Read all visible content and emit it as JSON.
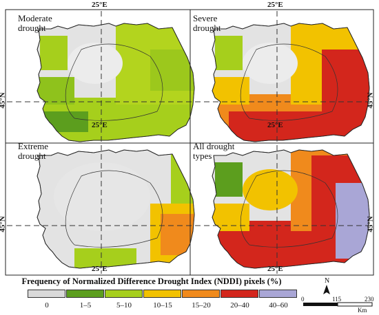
{
  "panels": [
    {
      "label": "Moderate\ndrought"
    },
    {
      "label": "Severe\ndrought"
    },
    {
      "label": "Extreme\ndrought"
    },
    {
      "label": "All drought\ntypes"
    }
  ],
  "coords": {
    "longitude": "25°E",
    "latitude": "45°N"
  },
  "legend": {
    "title": "Frequency of Normalized Difference Drought Index (NDDI) pixels (%)",
    "classes": [
      {
        "label": "0",
        "color": "#d9d9d9"
      },
      {
        "label": "1–5",
        "color": "#5c9e1e"
      },
      {
        "label": "5–10",
        "color": "#a6cf1c"
      },
      {
        "label": "10–15",
        "color": "#f2c200"
      },
      {
        "label": "15–20",
        "color": "#f08a1c"
      },
      {
        "label": "20–40",
        "color": "#d3261c"
      },
      {
        "label": "40–60",
        "color": "#a9a6d6"
      }
    ]
  },
  "scale_bar": {
    "north": "N",
    "labels": [
      "0",
      "115",
      "230"
    ],
    "unit": "Km"
  }
}
